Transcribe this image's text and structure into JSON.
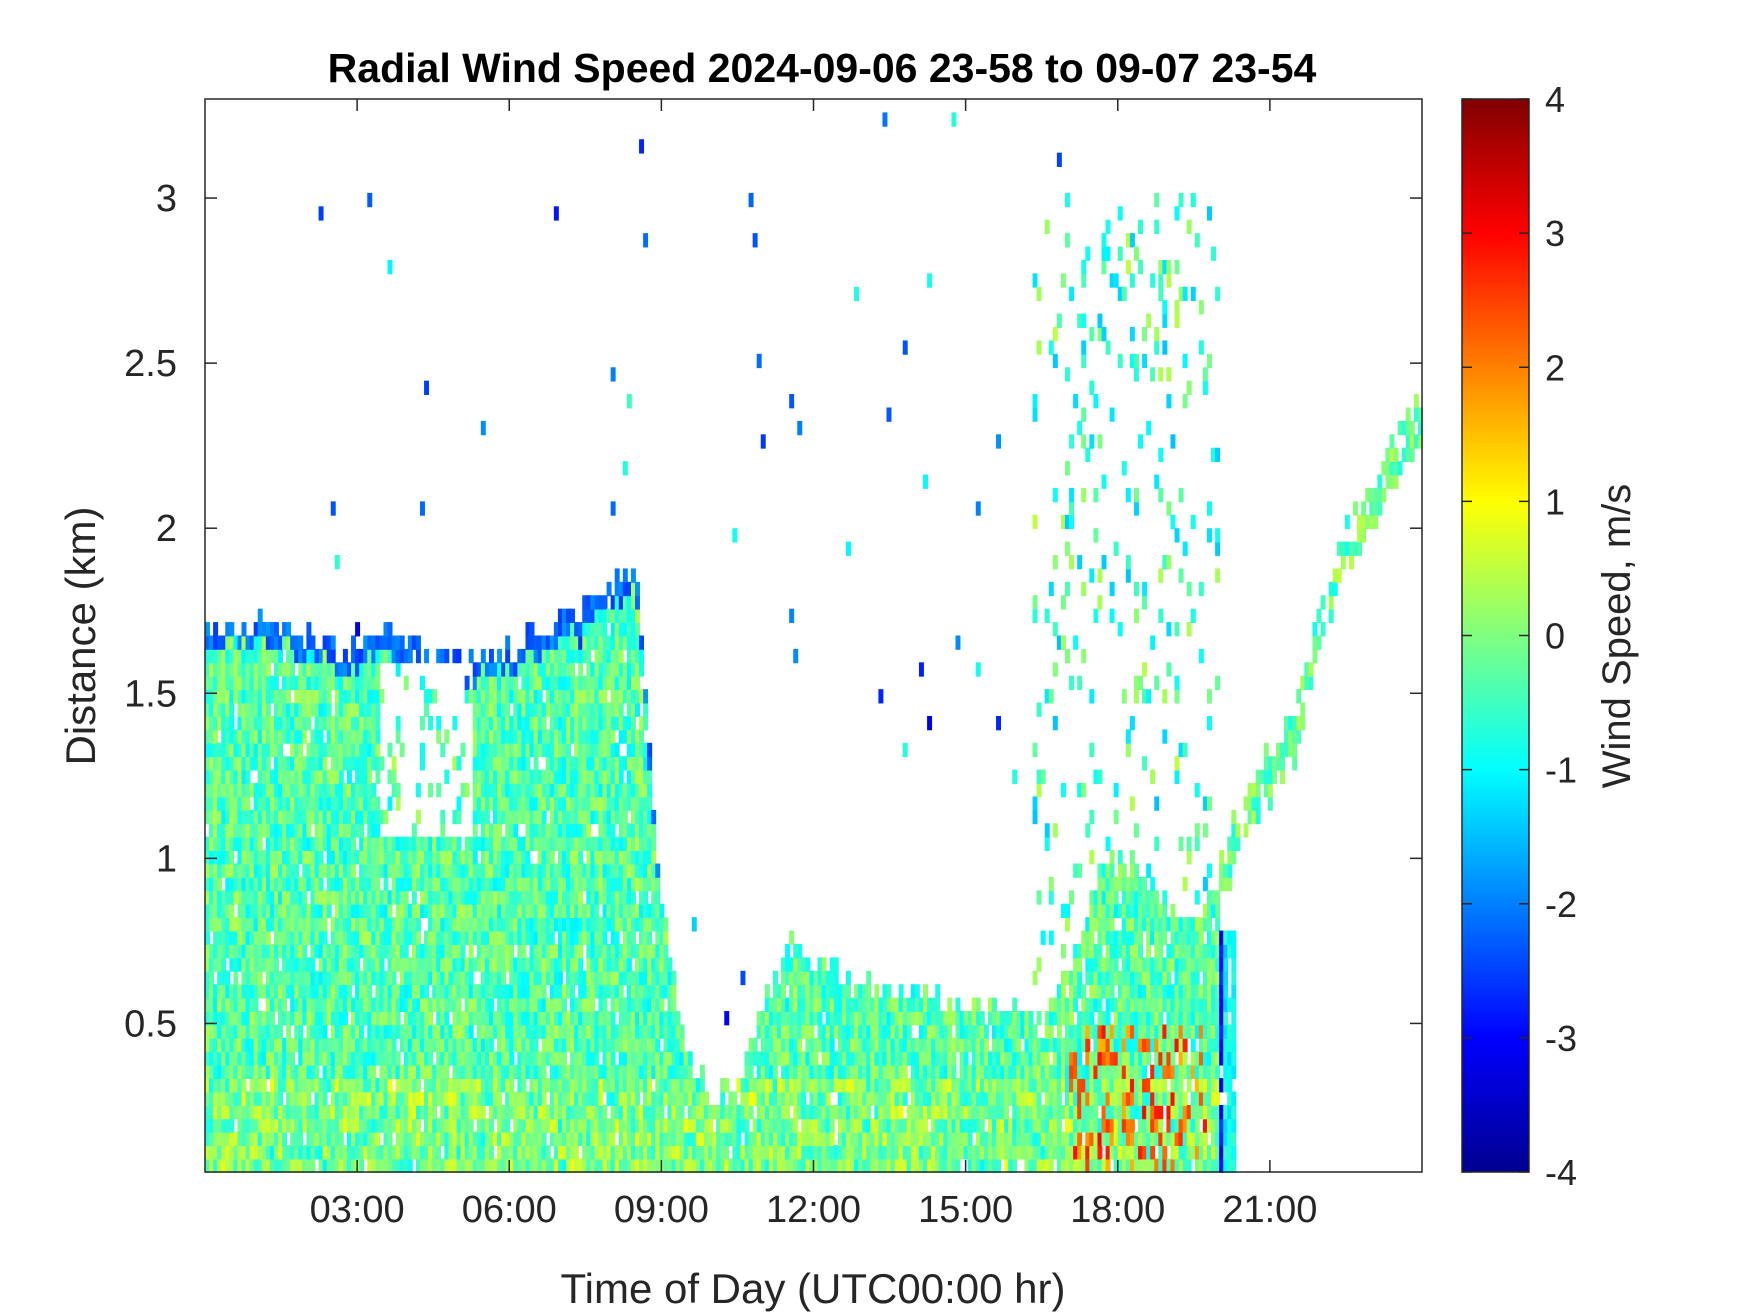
{
  "chart_data": {
    "type": "heatmap",
    "title": "Radial Wind Speed 2024-09-06 23-58 to 09-07 23-54",
    "xlabel": "Time of Day (UTC00:00 hr)",
    "ylabel": "Distance (km)",
    "xlim": [
      0,
      24
    ],
    "ylim": [
      0.05,
      3.3
    ],
    "x_ticks": [
      3,
      6,
      9,
      12,
      15,
      18,
      21
    ],
    "x_tick_labels": [
      "03:00",
      "06:00",
      "09:00",
      "12:00",
      "15:00",
      "18:00",
      "21:00"
    ],
    "y_ticks": [
      0.5,
      1,
      1.5,
      2,
      2.5,
      3
    ],
    "y_tick_labels": [
      "0.5",
      "1",
      "1.5",
      "2",
      "2.5",
      "3"
    ],
    "colorbar": {
      "label": "Wind Speed, m/s",
      "range": [
        -4,
        4
      ],
      "ticks": [
        -4,
        -3,
        -2,
        -1,
        0,
        1,
        2,
        3,
        4
      ],
      "tick_labels": [
        "-4",
        "-3",
        "-2",
        "-1",
        "0",
        "1",
        "2",
        "3",
        "4"
      ],
      "colormap": "jet"
    },
    "signal_top_km": [
      [
        0.0,
        1.7
      ],
      [
        0.5,
        1.7
      ],
      [
        1.0,
        1.72
      ],
      [
        1.5,
        1.73
      ],
      [
        2.0,
        1.68
      ],
      [
        2.5,
        1.65
      ],
      [
        3.0,
        1.63
      ],
      [
        3.5,
        1.68
      ],
      [
        4.0,
        1.64
      ],
      [
        4.5,
        1.62
      ],
      [
        5.0,
        1.62
      ],
      [
        5.5,
        1.62
      ],
      [
        6.0,
        1.64
      ],
      [
        6.5,
        1.68
      ],
      [
        7.0,
        1.72
      ],
      [
        7.5,
        1.76
      ],
      [
        8.0,
        1.82
      ],
      [
        8.5,
        1.88
      ],
      [
        9.0,
        0.85
      ],
      [
        9.5,
        0.4
      ],
      [
        10.0,
        0.3
      ],
      [
        10.5,
        0.3
      ],
      [
        11.0,
        0.55
      ],
      [
        11.5,
        0.75
      ],
      [
        12.0,
        0.7
      ],
      [
        12.5,
        0.65
      ],
      [
        13.0,
        0.62
      ],
      [
        13.5,
        0.6
      ],
      [
        14.0,
        0.6
      ],
      [
        14.5,
        0.58
      ],
      [
        15.0,
        0.55
      ],
      [
        15.5,
        0.55
      ],
      [
        16.0,
        0.55
      ],
      [
        16.5,
        0.5
      ],
      [
        17.0,
        0.6
      ],
      [
        17.5,
        0.9
      ],
      [
        18.0,
        1.0
      ],
      [
        18.5,
        0.95
      ],
      [
        19.0,
        0.85
      ],
      [
        19.5,
        0.8
      ],
      [
        20.0,
        0.95
      ],
      [
        20.5,
        1.15
      ],
      [
        21.0,
        1.25
      ],
      [
        21.5,
        1.4
      ],
      [
        22.0,
        1.7
      ],
      [
        22.5,
        1.95
      ],
      [
        23.0,
        2.05
      ],
      [
        23.5,
        2.2
      ],
      [
        24.0,
        2.35
      ]
    ],
    "notes": {
      "clear_gap_hours": [
        3.4,
        5.3
      ],
      "clear_gap_km": [
        1.05,
        1.6
      ],
      "aerosol_layer_after_hour": 20,
      "typical_speed_ms": [
        -1,
        1
      ],
      "strong_positive_near_hour": 19.8,
      "strong_negative_near_hour": 20.0
    }
  }
}
